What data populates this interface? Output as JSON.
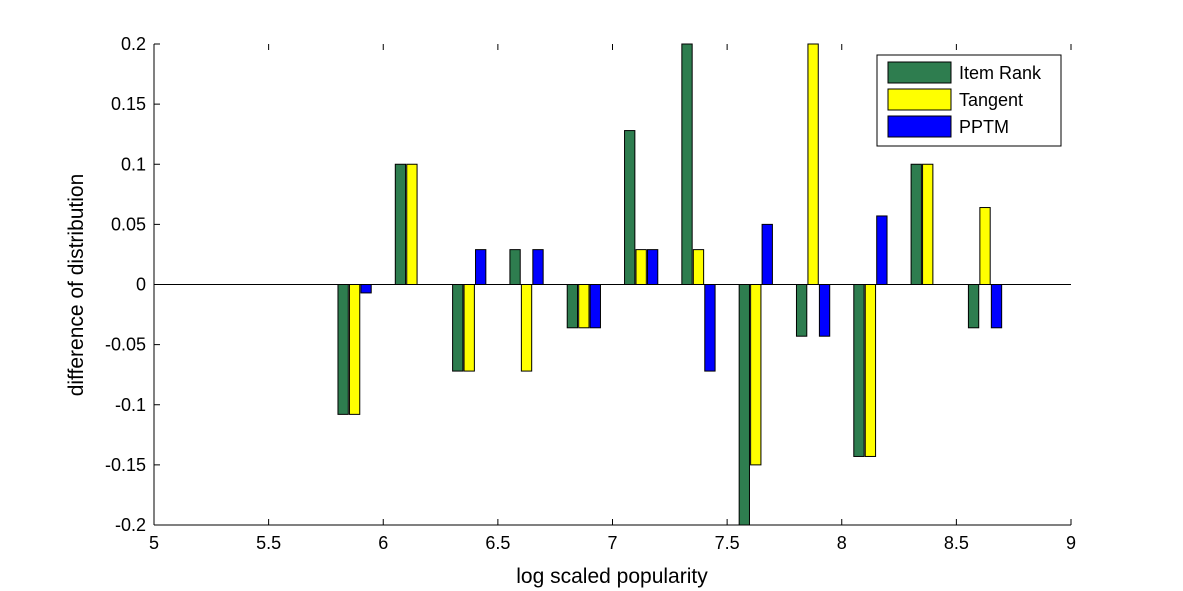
{
  "chart_data": {
    "type": "bar",
    "xlabel": "log scaled popularity",
    "ylabel": "difference of distribution",
    "xlim": [
      5,
      9
    ],
    "ylim": [
      -0.2,
      0.2
    ],
    "xticks": [
      "5",
      "5.5",
      "6",
      "6.5",
      "7",
      "7.5",
      "8",
      "8.5",
      "9"
    ],
    "yticks": [
      "-0.2",
      "-0.15",
      "-0.1",
      "-0.05",
      "0",
      "0.05",
      "0.1",
      "0.15",
      "0.2"
    ],
    "x": [
      5.875,
      6.125,
      6.375,
      6.625,
      6.875,
      7.125,
      7.375,
      7.625,
      7.875,
      8.125,
      8.375,
      8.625
    ],
    "bar_width": 0.05,
    "grid": false,
    "legend_position": "top-right",
    "series": [
      {
        "name": "Item Rank",
        "color": "#2e7d4f",
        "values": [
          -0.108,
          0.1,
          -0.072,
          0.029,
          -0.036,
          0.128,
          0.2,
          -0.2,
          -0.043,
          -0.143,
          0.1,
          -0.036
        ]
      },
      {
        "name": "Tangent",
        "color": "#ffff00",
        "values": [
          -0.108,
          0.1,
          -0.072,
          -0.072,
          -0.036,
          0.029,
          0.029,
          -0.15,
          0.2,
          -0.143,
          0.1,
          0.064
        ]
      },
      {
        "name": "PPTM",
        "color": "#0000ff",
        "values": [
          -0.007,
          0,
          0.029,
          0.029,
          -0.036,
          0.029,
          -0.072,
          0.05,
          -0.043,
          0.057,
          0,
          -0.036
        ]
      }
    ]
  }
}
